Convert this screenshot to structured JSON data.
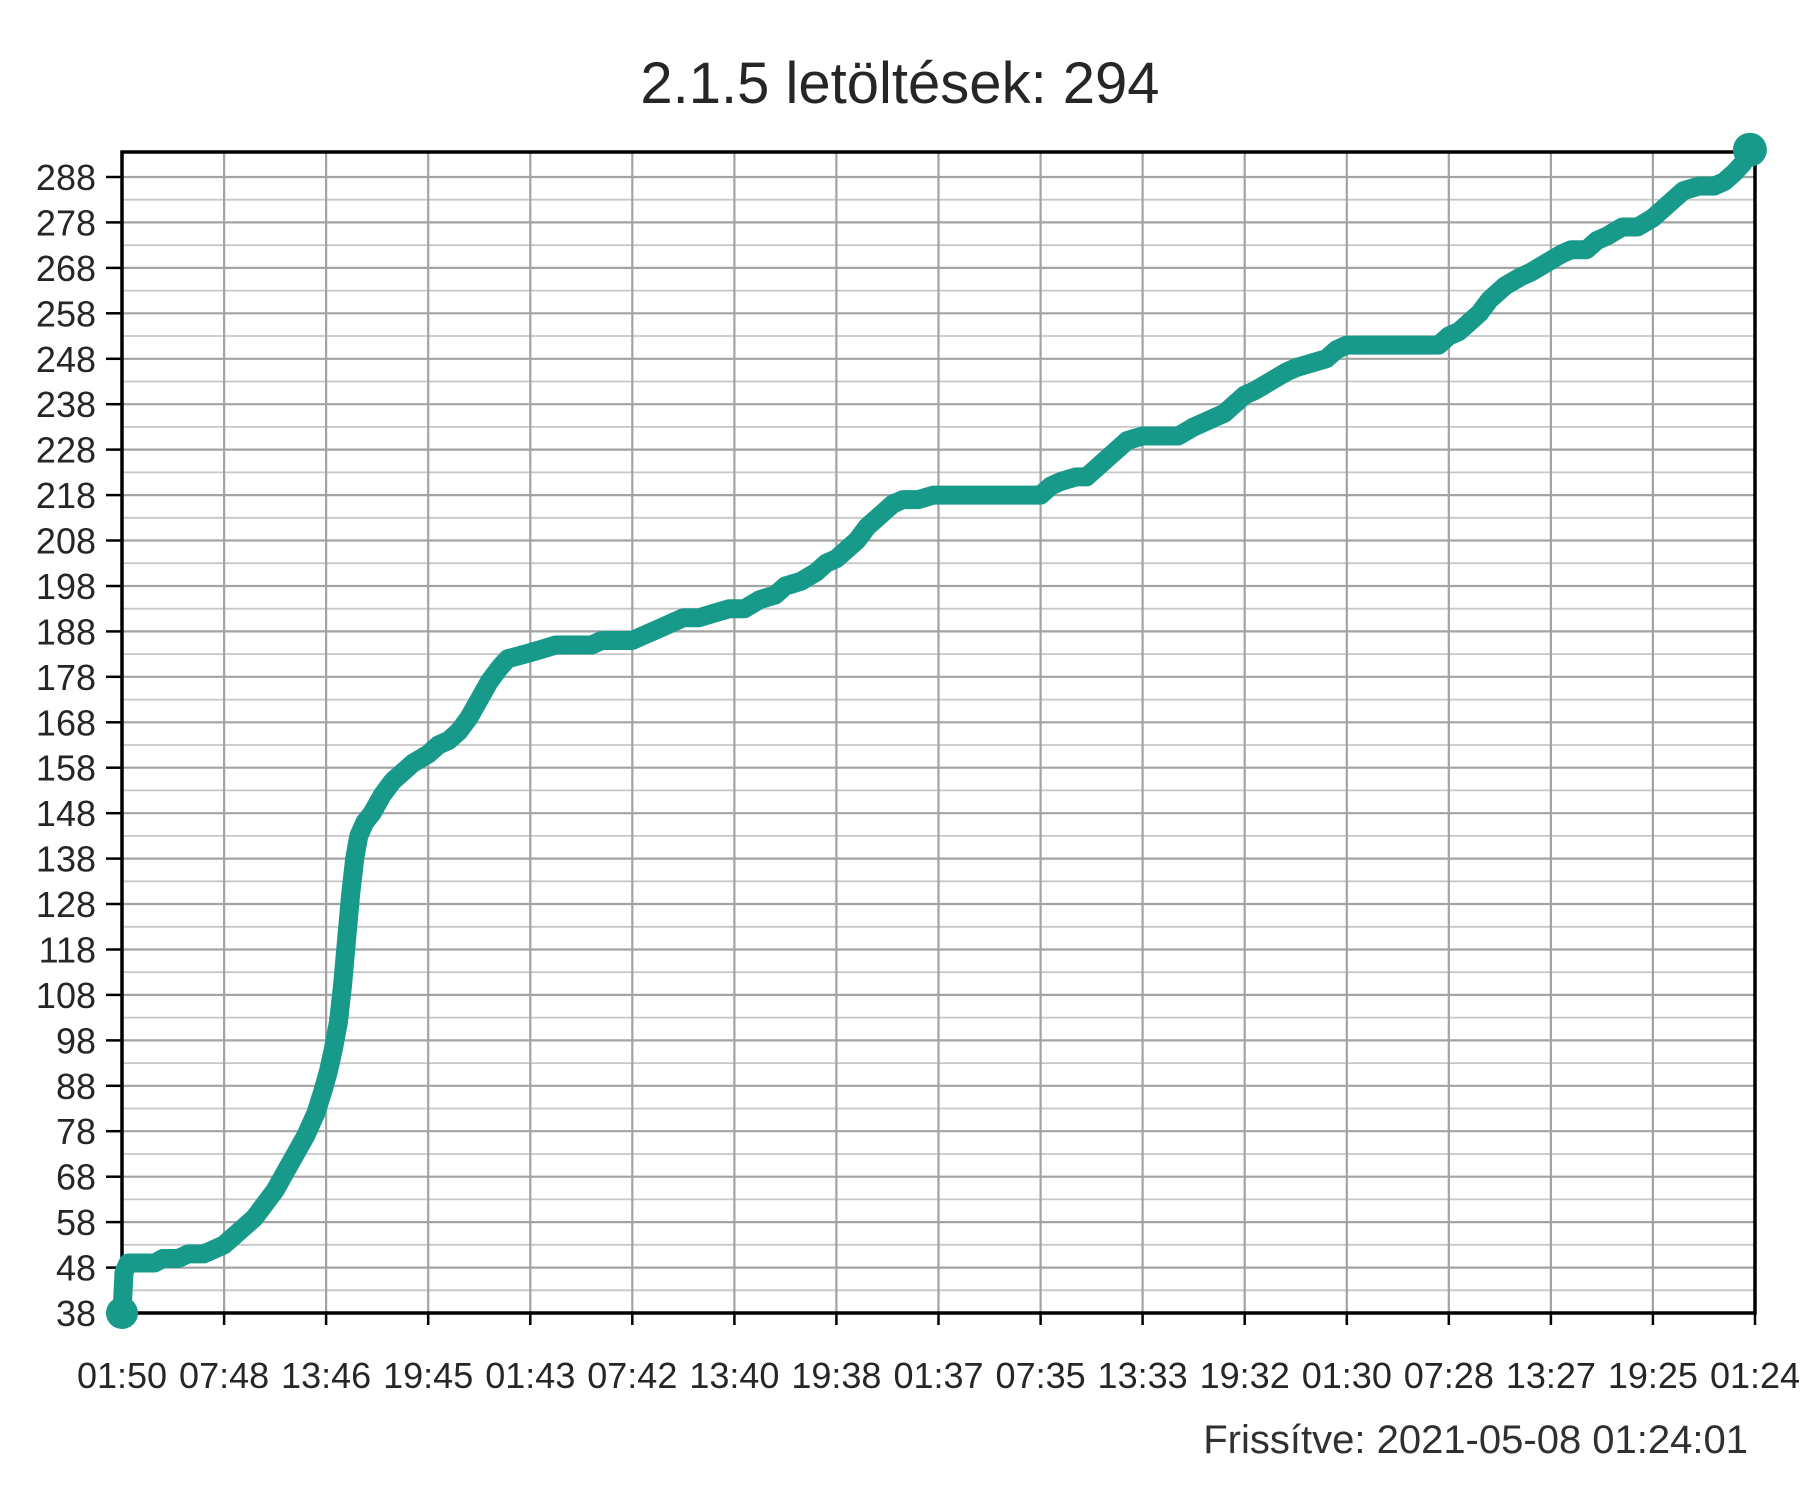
{
  "page": {
    "title": "2.1.5 letöltések: 294",
    "footer": "Frissítve: 2021-05-08 01:24:01"
  },
  "chart_data": {
    "type": "line",
    "title": "2.1.5 letöltések: 294",
    "updated_text": "Frissítve: 2021-05-08 01:24:01",
    "xlabel": "",
    "ylabel": "",
    "legend": "none",
    "grid": "on",
    "x_tick_labels": [
      "01:50",
      "07:48",
      "13:46",
      "19:45",
      "01:43",
      "07:42",
      "13:40",
      "19:38",
      "01:37",
      "07:35",
      "13:33",
      "19:32",
      "01:30",
      "07:28",
      "13:27",
      "19:25",
      "01:24"
    ],
    "y_ticks": [
      38,
      48,
      58,
      68,
      78,
      88,
      98,
      108,
      118,
      128,
      138,
      148,
      158,
      168,
      178,
      188,
      198,
      208,
      218,
      228,
      238,
      248,
      258,
      268,
      278,
      288
    ],
    "xlim": [
      0,
      16
    ],
    "ylim": [
      38,
      293.5
    ],
    "minor_grid_step": 5,
    "major_grid_step": 10,
    "colors": {
      "series": "#189a8a",
      "grid_major": "#a3a3a3",
      "grid_minor": "#c7c7c7",
      "frame": "#000000",
      "text": "#262626"
    },
    "series": [
      {
        "name": "2.1.5 letöltések",
        "final_value": 294,
        "start_value": 38,
        "points": [
          [
            0,
            38
          ],
          [
            0.02,
            47
          ],
          [
            0.06,
            49
          ],
          [
            0.2,
            49
          ],
          [
            0.32,
            49
          ],
          [
            0.4,
            50
          ],
          [
            0.55,
            50
          ],
          [
            0.65,
            51
          ],
          [
            0.8,
            51
          ],
          [
            0.9,
            52
          ],
          [
            1.0,
            53
          ],
          [
            1.1,
            55
          ],
          [
            1.2,
            57
          ],
          [
            1.3,
            59
          ],
          [
            1.4,
            62
          ],
          [
            1.5,
            65
          ],
          [
            1.6,
            69
          ],
          [
            1.7,
            73
          ],
          [
            1.8,
            77
          ],
          [
            1.9,
            82
          ],
          [
            1.97,
            87
          ],
          [
            2.02,
            91
          ],
          [
            2.07,
            96
          ],
          [
            2.12,
            102
          ],
          [
            2.16,
            110
          ],
          [
            2.2,
            120
          ],
          [
            2.24,
            130
          ],
          [
            2.28,
            138
          ],
          [
            2.32,
            143
          ],
          [
            2.38,
            146
          ],
          [
            2.45,
            148
          ],
          [
            2.55,
            152
          ],
          [
            2.65,
            155
          ],
          [
            2.75,
            157
          ],
          [
            2.85,
            159
          ],
          [
            3.0,
            161
          ],
          [
            3.1,
            163
          ],
          [
            3.2,
            164
          ],
          [
            3.3,
            166
          ],
          [
            3.4,
            169
          ],
          [
            3.5,
            173
          ],
          [
            3.6,
            177
          ],
          [
            3.7,
            180
          ],
          [
            3.78,
            182
          ],
          [
            3.95,
            183
          ],
          [
            4.1,
            184
          ],
          [
            4.25,
            185
          ],
          [
            4.45,
            185
          ],
          [
            4.6,
            185
          ],
          [
            4.7,
            186
          ],
          [
            4.85,
            186
          ],
          [
            5.0,
            186
          ],
          [
            5.1,
            187
          ],
          [
            5.2,
            188
          ],
          [
            5.3,
            189
          ],
          [
            5.4,
            190
          ],
          [
            5.5,
            191
          ],
          [
            5.65,
            191
          ],
          [
            5.8,
            192
          ],
          [
            5.95,
            193
          ],
          [
            6.1,
            193
          ],
          [
            6.25,
            195
          ],
          [
            6.4,
            196
          ],
          [
            6.5,
            198
          ],
          [
            6.65,
            199
          ],
          [
            6.8,
            201
          ],
          [
            6.9,
            203
          ],
          [
            7.0,
            204
          ],
          [
            7.1,
            206
          ],
          [
            7.2,
            208
          ],
          [
            7.3,
            211
          ],
          [
            7.45,
            214
          ],
          [
            7.55,
            216
          ],
          [
            7.65,
            217
          ],
          [
            7.8,
            217
          ],
          [
            7.95,
            218
          ],
          [
            8.2,
            218
          ],
          [
            8.5,
            218
          ],
          [
            8.8,
            218
          ],
          [
            9.0,
            218
          ],
          [
            9.1,
            220
          ],
          [
            9.2,
            221
          ],
          [
            9.35,
            222
          ],
          [
            9.45,
            222
          ],
          [
            9.55,
            224
          ],
          [
            9.65,
            226
          ],
          [
            9.75,
            228
          ],
          [
            9.85,
            230
          ],
          [
            10.0,
            231
          ],
          [
            10.2,
            231
          ],
          [
            10.35,
            231
          ],
          [
            10.5,
            233
          ],
          [
            10.6,
            234
          ],
          [
            10.7,
            235
          ],
          [
            10.8,
            236
          ],
          [
            10.9,
            238
          ],
          [
            11.0,
            240
          ],
          [
            11.1,
            241
          ],
          [
            11.25,
            243
          ],
          [
            11.4,
            245
          ],
          [
            11.5,
            246
          ],
          [
            11.65,
            247
          ],
          [
            11.8,
            248
          ],
          [
            11.9,
            250
          ],
          [
            12.0,
            251
          ],
          [
            12.15,
            251
          ],
          [
            12.4,
            251
          ],
          [
            12.65,
            251
          ],
          [
            12.9,
            251
          ],
          [
            13.0,
            253
          ],
          [
            13.1,
            254
          ],
          [
            13.2,
            256
          ],
          [
            13.3,
            258
          ],
          [
            13.4,
            261
          ],
          [
            13.55,
            264
          ],
          [
            13.7,
            266
          ],
          [
            13.8,
            267
          ],
          [
            13.95,
            269
          ],
          [
            14.1,
            271
          ],
          [
            14.2,
            272
          ],
          [
            14.35,
            272
          ],
          [
            14.45,
            274
          ],
          [
            14.55,
            275
          ],
          [
            14.7,
            277
          ],
          [
            14.85,
            277
          ],
          [
            15.0,
            279
          ],
          [
            15.1,
            281
          ],
          [
            15.2,
            283
          ],
          [
            15.3,
            285
          ],
          [
            15.45,
            286
          ],
          [
            15.6,
            286
          ],
          [
            15.7,
            287
          ],
          [
            15.8,
            289
          ],
          [
            15.88,
            291
          ],
          [
            15.95,
            294
          ]
        ]
      }
    ]
  }
}
